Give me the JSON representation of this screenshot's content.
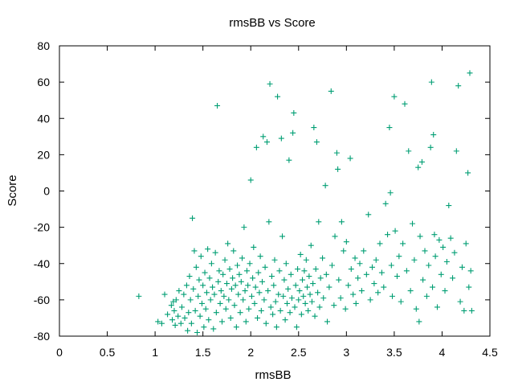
{
  "chart_data": {
    "type": "scatter",
    "title": "rmsBB vs Score",
    "xlabel": "rmsBB",
    "ylabel": "Score",
    "xlim": [
      0,
      4.5
    ],
    "ylim": [
      -80,
      80
    ],
    "xticks": [
      0,
      0.5,
      1,
      1.5,
      2,
      2.5,
      3,
      3.5,
      4,
      4.5
    ],
    "xtick_labels": [
      "0",
      "0.5",
      "1",
      "1.5",
      "2",
      "2.5",
      "3",
      "3.5",
      "4",
      "4.5"
    ],
    "yticks": [
      -80,
      -60,
      -40,
      -20,
      0,
      20,
      40,
      60,
      80
    ],
    "ytick_labels": [
      "-80",
      "-60",
      "-40",
      "-20",
      "0",
      "20",
      "40",
      "60",
      "80"
    ],
    "grid": false,
    "marker": "+",
    "colors": {
      "series": "#009e73",
      "axes": "#000000"
    },
    "series": [
      {
        "points": [
          [
            0.83,
            -58
          ],
          [
            1.03,
            -72
          ],
          [
            1.07,
            -73
          ],
          [
            1.1,
            -57
          ],
          [
            1.13,
            -68
          ],
          [
            1.17,
            -63
          ],
          [
            1.18,
            -71
          ],
          [
            1.19,
            -61
          ],
          [
            1.2,
            -66
          ],
          [
            1.21,
            -74
          ],
          [
            1.22,
            -60
          ],
          [
            1.24,
            -69
          ],
          [
            1.25,
            -55
          ],
          [
            1.27,
            -73
          ],
          [
            1.28,
            -64
          ],
          [
            1.3,
            -57
          ],
          [
            1.31,
            -70
          ],
          [
            1.33,
            -52
          ],
          [
            1.34,
            -77
          ],
          [
            1.35,
            -67
          ],
          [
            1.36,
            -47
          ],
          [
            1.37,
            -60
          ],
          [
            1.38,
            -73
          ],
          [
            1.39,
            -15
          ],
          [
            1.4,
            -54
          ],
          [
            1.41,
            -33
          ],
          [
            1.42,
            -66
          ],
          [
            1.43,
            -42
          ],
          [
            1.44,
            -78
          ],
          [
            1.45,
            -58
          ],
          [
            1.46,
            -49
          ],
          [
            1.47,
            -69
          ],
          [
            1.48,
            -36
          ],
          [
            1.49,
            -62
          ],
          [
            1.5,
            -52
          ],
          [
            1.51,
            -75
          ],
          [
            1.52,
            -45
          ],
          [
            1.53,
            -65
          ],
          [
            1.54,
            -56
          ],
          [
            1.55,
            -32
          ],
          [
            1.56,
            -71
          ],
          [
            1.57,
            -48
          ],
          [
            1.58,
            -60
          ],
          [
            1.59,
            -40
          ],
          [
            1.6,
            -53
          ],
          [
            1.61,
            -76
          ],
          [
            1.62,
            -57
          ],
          [
            1.63,
            -34
          ],
          [
            1.64,
            -67
          ],
          [
            1.65,
            47
          ],
          [
            1.66,
            -50
          ],
          [
            1.67,
            -44
          ],
          [
            1.68,
            -62
          ],
          [
            1.69,
            -55
          ],
          [
            1.7,
            -72
          ],
          [
            1.71,
            -46
          ],
          [
            1.72,
            -58
          ],
          [
            1.73,
            -38
          ],
          [
            1.74,
            -65
          ],
          [
            1.75,
            -51
          ],
          [
            1.76,
            -29
          ],
          [
            1.77,
            -60
          ],
          [
            1.78,
            -43
          ],
          [
            1.79,
            -70
          ],
          [
            1.8,
            -54
          ],
          [
            1.81,
            -48
          ],
          [
            1.82,
            -33
          ],
          [
            1.83,
            -63
          ],
          [
            1.84,
            -52
          ],
          [
            1.85,
            -75
          ],
          [
            1.86,
            -41
          ],
          [
            1.87,
            -57
          ],
          [
            1.88,
            -46
          ],
          [
            1.89,
            -67
          ],
          [
            1.9,
            -50
          ],
          [
            1.91,
            -37
          ],
          [
            1.92,
            -60
          ],
          [
            1.93,
            -20
          ],
          [
            1.94,
            -55
          ],
          [
            1.95,
            -72
          ],
          [
            1.96,
            -44
          ],
          [
            1.97,
            -52
          ],
          [
            1.98,
            -65
          ],
          [
            1.99,
            -40
          ],
          [
            2.0,
            6
          ],
          [
            2.01,
            -58
          ],
          [
            2.02,
            -48
          ],
          [
            2.03,
            -31
          ],
          [
            2.04,
            -62
          ],
          [
            2.05,
            -53
          ],
          [
            2.06,
            24
          ],
          [
            2.07,
            -70
          ],
          [
            2.08,
            -45
          ],
          [
            2.09,
            -56
          ],
          [
            2.1,
            -36
          ],
          [
            2.11,
            -66
          ],
          [
            2.12,
            -50
          ],
          [
            2.13,
            30
          ],
          [
            2.14,
            -60
          ],
          [
            2.15,
            -42
          ],
          [
            2.16,
            -73
          ],
          [
            2.17,
            27
          ],
          [
            2.18,
            -55
          ],
          [
            2.19,
            -17
          ],
          [
            2.2,
            59
          ],
          [
            2.21,
            -64
          ],
          [
            2.22,
            -47
          ],
          [
            2.23,
            -68
          ],
          [
            2.24,
            -52
          ],
          [
            2.25,
            -38
          ],
          [
            2.26,
            -61
          ],
          [
            2.27,
            -75
          ],
          [
            2.28,
            52
          ],
          [
            2.29,
            -57
          ],
          [
            2.3,
            -44
          ],
          [
            2.31,
            -66
          ],
          [
            2.32,
            29
          ],
          [
            2.33,
            -25
          ],
          [
            2.34,
            -58
          ],
          [
            2.35,
            -49
          ],
          [
            2.36,
            -71
          ],
          [
            2.37,
            -40
          ],
          [
            2.38,
            -62
          ],
          [
            2.39,
            -54
          ],
          [
            2.4,
            17
          ],
          [
            2.41,
            -67
          ],
          [
            2.42,
            -46
          ],
          [
            2.43,
            -59
          ],
          [
            2.44,
            32
          ],
          [
            2.45,
            43
          ],
          [
            2.46,
            -64
          ],
          [
            2.47,
            -52
          ],
          [
            2.48,
            -75
          ],
          [
            2.49,
            -43
          ],
          [
            2.5,
            -60
          ],
          [
            2.51,
            -55
          ],
          [
            2.52,
            -35
          ],
          [
            2.53,
            -68
          ],
          [
            2.54,
            -49
          ],
          [
            2.55,
            -58
          ],
          [
            2.56,
            -44
          ],
          [
            2.57,
            -62
          ],
          [
            2.58,
            -38
          ],
          [
            2.59,
            -53
          ],
          [
            2.6,
            -66
          ],
          [
            2.61,
            -47
          ],
          [
            2.62,
            -57
          ],
          [
            2.63,
            -30
          ],
          [
            2.64,
            -61
          ],
          [
            2.65,
            -51
          ],
          [
            2.66,
            35
          ],
          [
            2.67,
            -69
          ],
          [
            2.68,
            -43
          ],
          [
            2.69,
            27
          ],
          [
            2.7,
            -56
          ],
          [
            2.71,
            -17
          ],
          [
            2.72,
            -64
          ],
          [
            2.73,
            -48
          ],
          [
            2.75,
            -37
          ],
          [
            2.76,
            -59
          ],
          [
            2.78,
            3
          ],
          [
            2.79,
            -46
          ],
          [
            2.8,
            -72
          ],
          [
            2.82,
            -53
          ],
          [
            2.84,
            55
          ],
          [
            2.85,
            -41
          ],
          [
            2.87,
            -63
          ],
          [
            2.88,
            -25
          ],
          [
            2.9,
            21
          ],
          [
            2.91,
            12
          ],
          [
            2.92,
            -49
          ],
          [
            2.94,
            -59
          ],
          [
            2.95,
            -17
          ],
          [
            2.97,
            -33
          ],
          [
            2.99,
            -65
          ],
          [
            3.0,
            -28
          ],
          [
            3.02,
            -52
          ],
          [
            3.04,
            18
          ],
          [
            3.05,
            -43
          ],
          [
            3.07,
            -57
          ],
          [
            3.09,
            -37
          ],
          [
            3.1,
            -62
          ],
          [
            3.12,
            -48
          ],
          [
            3.14,
            -40
          ],
          [
            3.16,
            -55
          ],
          [
            3.18,
            -33
          ],
          [
            3.21,
            -46
          ],
          [
            3.23,
            -13
          ],
          [
            3.25,
            -60
          ],
          [
            3.27,
            -42
          ],
          [
            3.29,
            -51
          ],
          [
            3.31,
            -38
          ],
          [
            3.33,
            -56
          ],
          [
            3.35,
            -29
          ],
          [
            3.37,
            -45
          ],
          [
            3.39,
            -53
          ],
          [
            3.41,
            -7
          ],
          [
            3.43,
            -24
          ],
          [
            3.45,
            35
          ],
          [
            3.46,
            -1
          ],
          [
            3.47,
            -41
          ],
          [
            3.48,
            -58
          ],
          [
            3.5,
            52
          ],
          [
            3.51,
            -22
          ],
          [
            3.53,
            -47
          ],
          [
            3.55,
            -36
          ],
          [
            3.57,
            -61
          ],
          [
            3.59,
            -29
          ],
          [
            3.61,
            48
          ],
          [
            3.63,
            -44
          ],
          [
            3.65,
            22
          ],
          [
            3.67,
            -55
          ],
          [
            3.69,
            -18
          ],
          [
            3.71,
            -38
          ],
          [
            3.73,
            -65
          ],
          [
            3.75,
            13
          ],
          [
            3.76,
            -72
          ],
          [
            3.77,
            -25
          ],
          [
            3.79,
            16
          ],
          [
            3.8,
            -49
          ],
          [
            3.82,
            -33
          ],
          [
            3.84,
            -58
          ],
          [
            3.86,
            -41
          ],
          [
            3.88,
            24
          ],
          [
            3.89,
            60
          ],
          [
            3.9,
            -53
          ],
          [
            3.91,
            31
          ],
          [
            3.92,
            -24
          ],
          [
            3.93,
            -36
          ],
          [
            3.95,
            -64
          ],
          [
            3.97,
            -27
          ],
          [
            3.99,
            -46
          ],
          [
            4.01,
            -31
          ],
          [
            4.03,
            -55
          ],
          [
            4.05,
            -39
          ],
          [
            4.07,
            -8
          ],
          [
            4.09,
            -26
          ],
          [
            4.11,
            -48
          ],
          [
            4.13,
            -34
          ],
          [
            4.15,
            22
          ],
          [
            4.17,
            58
          ],
          [
            4.19,
            -61
          ],
          [
            4.21,
            -42
          ],
          [
            4.23,
            -66
          ],
          [
            4.25,
            -29
          ],
          [
            4.27,
            10
          ],
          [
            4.28,
            -53
          ],
          [
            4.29,
            65
          ],
          [
            4.3,
            -44
          ],
          [
            4.31,
            -66
          ]
        ]
      }
    ]
  }
}
